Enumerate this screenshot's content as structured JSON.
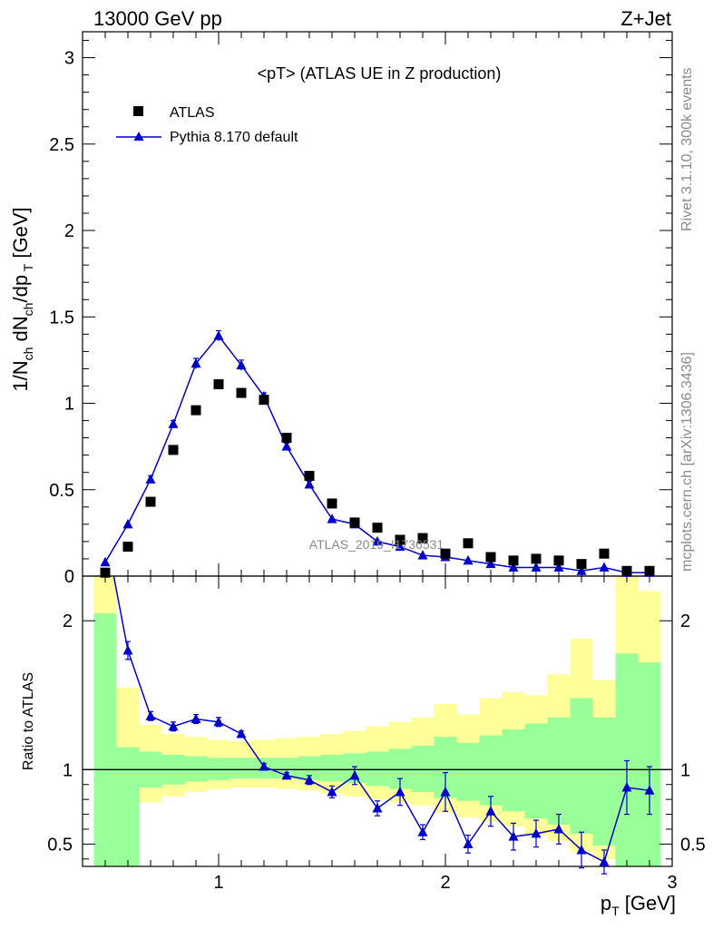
{
  "header": {
    "left": "13000 GeV pp",
    "right": "Z+Jet"
  },
  "side_labels": {
    "rivet": "Rivet 3.1.10,  300k events",
    "mcplots": "mcplots.cern.ch [arXiv:1306.3436]"
  },
  "watermark": "ATLAS_2019_I1736531",
  "chart_data": [
    {
      "type": "scatter",
      "title": "<pT> (ATLAS UE in Z production)",
      "xlabel": "",
      "ylabel": "1/N_ch dN_ch/dp_T [GeV]",
      "xlim": [
        0.4,
        3.0
      ],
      "ylim": [
        0,
        3.15
      ],
      "yticks": [
        0,
        0.5,
        1,
        1.5,
        2,
        2.5,
        3
      ],
      "ytick_labels": [
        "0",
        "0.5",
        "1",
        "1.5",
        "2",
        "2.5",
        "3"
      ],
      "legend_position": "top-left",
      "series": [
        {
          "name": "ATLAS",
          "marker": "square",
          "color": "#000000",
          "x": [
            0.5,
            0.6,
            0.7,
            0.8,
            0.9,
            1.0,
            1.1,
            1.2,
            1.3,
            1.4,
            1.5,
            1.6,
            1.7,
            1.8,
            1.9,
            2.0,
            2.1,
            2.2,
            2.3,
            2.4,
            2.5,
            2.6,
            2.7,
            2.8,
            2.9
          ],
          "y": [
            0.02,
            0.17,
            0.43,
            0.73,
            0.96,
            1.11,
            1.06,
            1.02,
            0.8,
            0.58,
            0.42,
            0.31,
            0.28,
            0.21,
            0.22,
            0.13,
            0.19,
            0.11,
            0.09,
            0.1,
            0.09,
            0.07,
            0.13,
            0.03,
            0.03
          ]
        },
        {
          "name": "Pythia 8.170 default",
          "marker": "triangle",
          "color": "#0000cc",
          "x": [
            0.5,
            0.6,
            0.7,
            0.8,
            0.9,
            1.0,
            1.1,
            1.2,
            1.3,
            1.4,
            1.5,
            1.6,
            1.7,
            1.8,
            1.9,
            2.0,
            2.1,
            2.2,
            2.3,
            2.4,
            2.5,
            2.6,
            2.7,
            2.8,
            2.9
          ],
          "y": [
            0.08,
            0.3,
            0.56,
            0.88,
            1.23,
            1.39,
            1.22,
            1.04,
            0.75,
            0.53,
            0.33,
            0.3,
            0.2,
            0.17,
            0.12,
            0.11,
            0.09,
            0.07,
            0.05,
            0.05,
            0.05,
            0.03,
            0.05,
            0.02,
            0.02
          ],
          "err": [
            0.01,
            0.01,
            0.02,
            0.02,
            0.03,
            0.03,
            0.03,
            0.02,
            0.02,
            0.02,
            0.01,
            0.01,
            0.01,
            0.01,
            0.01,
            0.01,
            0.01,
            0.01,
            0.01,
            0.01,
            0.01,
            0.01,
            0.01,
            0.01,
            0.01
          ]
        }
      ]
    },
    {
      "type": "line",
      "xlabel": "p_T [GeV]",
      "ylabel": "Ratio to ATLAS",
      "xlim": [
        0.4,
        3.0
      ],
      "ylim": [
        0.35,
        2.3
      ],
      "xticks": [
        1,
        2,
        3
      ],
      "xtick_labels": [
        "1",
        "2",
        "3"
      ],
      "yticks": [
        0.5,
        1,
        2
      ],
      "ytick_labels": [
        "0.5",
        "1",
        "2"
      ],
      "band_bins": [
        0.45,
        0.55,
        0.65,
        0.75,
        0.85,
        0.95,
        1.05,
        1.15,
        1.25,
        1.35,
        1.45,
        1.55,
        1.65,
        1.75,
        1.85,
        1.95,
        2.05,
        2.15,
        2.25,
        2.35,
        2.45,
        2.55,
        2.65,
        2.75,
        2.85,
        2.95
      ],
      "outer_band": {
        "color": "#ffff99",
        "low": [
          0.35,
          0.6,
          0.78,
          0.82,
          0.85,
          0.87,
          0.88,
          0.88,
          0.87,
          0.86,
          0.84,
          0.82,
          0.8,
          0.78,
          0.76,
          0.71,
          0.68,
          0.65,
          0.62,
          0.56,
          0.52,
          0.45,
          0.4,
          0.35,
          0.35
        ],
        "high": [
          2.3,
          1.55,
          1.3,
          1.24,
          1.22,
          1.2,
          1.19,
          1.2,
          1.21,
          1.22,
          1.24,
          1.26,
          1.29,
          1.32,
          1.35,
          1.44,
          1.37,
          1.48,
          1.52,
          1.5,
          1.64,
          1.88,
          1.6,
          2.3,
          2.2
        ]
      },
      "inner_band": {
        "color": "#99ff99",
        "low": [
          0.35,
          0.35,
          0.88,
          0.9,
          0.92,
          0.93,
          0.94,
          0.94,
          0.94,
          0.93,
          0.92,
          0.91,
          0.89,
          0.87,
          0.85,
          0.81,
          0.79,
          0.76,
          0.72,
          0.67,
          0.63,
          0.57,
          0.49,
          0.35,
          0.35
        ],
        "high": [
          2.05,
          1.15,
          1.12,
          1.1,
          1.09,
          1.08,
          1.08,
          1.08,
          1.08,
          1.09,
          1.1,
          1.11,
          1.12,
          1.14,
          1.16,
          1.22,
          1.18,
          1.23,
          1.27,
          1.31,
          1.35,
          1.48,
          1.35,
          1.78,
          1.72
        ]
      },
      "reference_line": 1,
      "series": [
        {
          "name": "Pythia 8.170 default",
          "color": "#0000cc",
          "x": [
            0.6,
            0.7,
            0.8,
            0.9,
            1.0,
            1.1,
            1.2,
            1.3,
            1.4,
            1.5,
            1.6,
            1.7,
            1.8,
            1.9,
            2.0,
            2.1,
            2.2,
            2.3,
            2.4,
            2.5,
            2.6,
            2.7,
            2.8,
            2.9
          ],
          "y": [
            1.8,
            1.36,
            1.29,
            1.34,
            1.32,
            1.24,
            1.02,
            0.96,
            0.93,
            0.85,
            0.96,
            0.74,
            0.85,
            0.58,
            0.85,
            0.5,
            0.72,
            0.55,
            0.57,
            0.6,
            0.46,
            0.38,
            0.88,
            0.86
          ],
          "err": [
            0.06,
            0.03,
            0.03,
            0.03,
            0.03,
            0.02,
            0.02,
            0.02,
            0.03,
            0.04,
            0.06,
            0.05,
            0.09,
            0.05,
            0.13,
            0.06,
            0.1,
            0.09,
            0.09,
            0.1,
            0.12,
            0.08,
            0.18,
            0.16
          ]
        }
      ],
      "first_point": {
        "x": 0.5,
        "y": 2.6
      }
    }
  ]
}
